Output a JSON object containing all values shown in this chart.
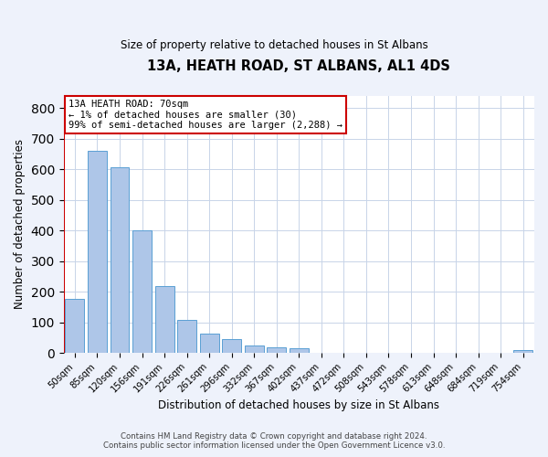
{
  "title": "13A, HEATH ROAD, ST ALBANS, AL1 4DS",
  "subtitle": "Size of property relative to detached houses in St Albans",
  "xlabel": "Distribution of detached houses by size in St Albans",
  "ylabel": "Number of detached properties",
  "bar_labels": [
    "50sqm",
    "85sqm",
    "120sqm",
    "156sqm",
    "191sqm",
    "226sqm",
    "261sqm",
    "296sqm",
    "332sqm",
    "367sqm",
    "402sqm",
    "437sqm",
    "472sqm",
    "508sqm",
    "543sqm",
    "578sqm",
    "613sqm",
    "648sqm",
    "684sqm",
    "719sqm",
    "754sqm"
  ],
  "bar_values": [
    175,
    660,
    605,
    400,
    218,
    109,
    63,
    45,
    23,
    17,
    15,
    0,
    0,
    0,
    0,
    0,
    0,
    0,
    0,
    0,
    8
  ],
  "bar_color": "#aec6e8",
  "bar_edge_color": "#5a9fd4",
  "annotation_box_color": "#cc0000",
  "annotation_text_line1": "13A HEATH ROAD: 70sqm",
  "annotation_text_line2": "← 1% of detached houses are smaller (30)",
  "annotation_text_line3": "99% of semi-detached houses are larger (2,288) →",
  "marker_color": "#cc0000",
  "ylim": [
    0,
    840
  ],
  "yticks": [
    0,
    100,
    200,
    300,
    400,
    500,
    600,
    700,
    800
  ],
  "footer_line1": "Contains HM Land Registry data © Crown copyright and database right 2024.",
  "footer_line2": "Contains public sector information licensed under the Open Government Licence v3.0.",
  "bg_color": "#eef2fb",
  "plot_bg_color": "#ffffff",
  "grid_color": "#c8d4e8"
}
